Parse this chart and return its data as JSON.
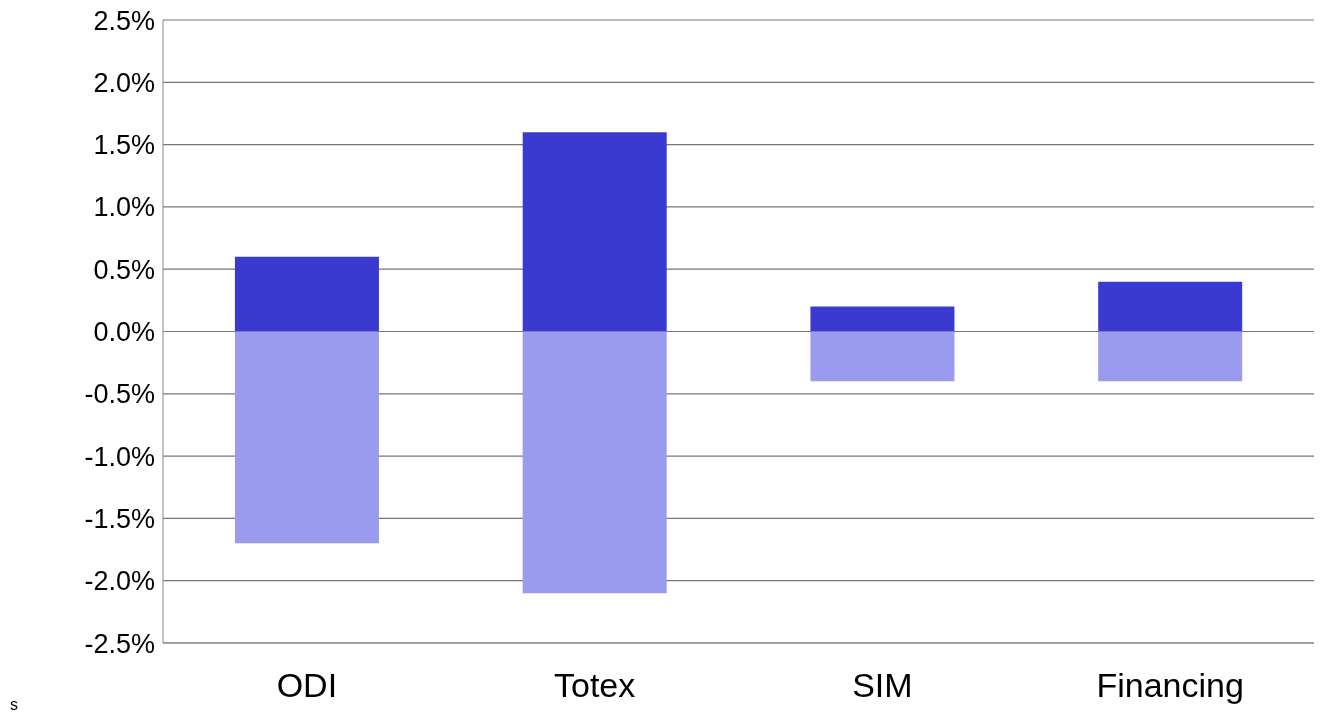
{
  "chart_data": {
    "type": "bar",
    "stacked": true,
    "categories": [
      "ODI",
      "Totex",
      "SIM",
      "Financing"
    ],
    "series": [
      {
        "color": "#3a3ad0",
        "values": [
          0.6,
          1.6,
          0.2,
          0.4
        ]
      },
      {
        "color": "#9a9aee",
        "values": [
          -1.7,
          -2.1,
          -0.4,
          -0.4
        ]
      }
    ],
    "ylim": [
      -2.5,
      2.5
    ],
    "yticks": [
      {
        "value": -2.5,
        "label": "-2.5%"
      },
      {
        "value": -2.0,
        "label": "-2.0%"
      },
      {
        "value": -1.5,
        "label": "-1.5%"
      },
      {
        "value": -1.0,
        "label": "-1.0%"
      },
      {
        "value": -0.5,
        "label": "-0.5%"
      },
      {
        "value": 0.0,
        "label": "0.0%"
      },
      {
        "value": 0.5,
        "label": "0.5%"
      },
      {
        "value": 1.0,
        "label": "1.0%"
      },
      {
        "value": 1.5,
        "label": "1.5%"
      },
      {
        "value": 2.0,
        "label": "2.0%"
      },
      {
        "value": 2.5,
        "label": "2.5%"
      }
    ],
    "grid": "y",
    "legend": false,
    "annotations": [
      "s"
    ]
  }
}
